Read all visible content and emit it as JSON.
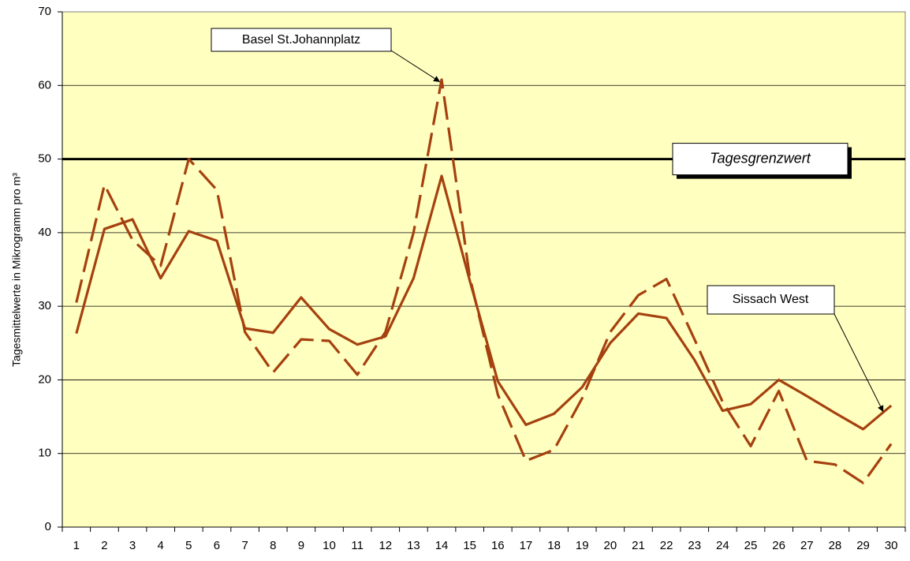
{
  "chart_data": {
    "type": "line",
    "y_label": "Tagesmittelwerte in Mikrogramm pro m³",
    "categories": [
      1,
      2,
      3,
      4,
      5,
      6,
      7,
      8,
      9,
      10,
      11,
      12,
      13,
      14,
      15,
      16,
      17,
      18,
      19,
      20,
      21,
      22,
      23,
      24,
      25,
      26,
      27,
      28,
      29,
      30
    ],
    "series": [
      {
        "name": "Basel St.Johannplatz",
        "color": "#a5410f",
        "dashed": true,
        "values": [
          30.5,
          46.5,
          39.0,
          35.5,
          50.0,
          45.8,
          26.5,
          21.0,
          25.5,
          25.3,
          20.7,
          26.5,
          40.0,
          60.8,
          34.0,
          18.0,
          9.0,
          10.5,
          17.5,
          26.5,
          31.5,
          33.7,
          25.5,
          17.0,
          11.0,
          18.5,
          9.0,
          8.5,
          6.0,
          11.3
        ]
      },
      {
        "name": "Sissach West",
        "color": "#a5410f",
        "dashed": false,
        "values": [
          26.3,
          40.5,
          41.8,
          33.8,
          40.2,
          38.9,
          27.0,
          26.4,
          31.2,
          26.9,
          24.8,
          25.9,
          33.8,
          47.7,
          33.5,
          19.8,
          13.9,
          15.4,
          19.0,
          25.0,
          29.0,
          28.4,
          22.7,
          15.8,
          16.7,
          20.0,
          17.8,
          15.5,
          13.3,
          16.5
        ]
      }
    ],
    "threshold": {
      "label": "Tagesgrenzwert",
      "value": 50
    },
    "ylim": [
      0,
      70
    ],
    "yticks": [
      0,
      10,
      20,
      30,
      40,
      50,
      60,
      70
    ],
    "grid": true
  }
}
